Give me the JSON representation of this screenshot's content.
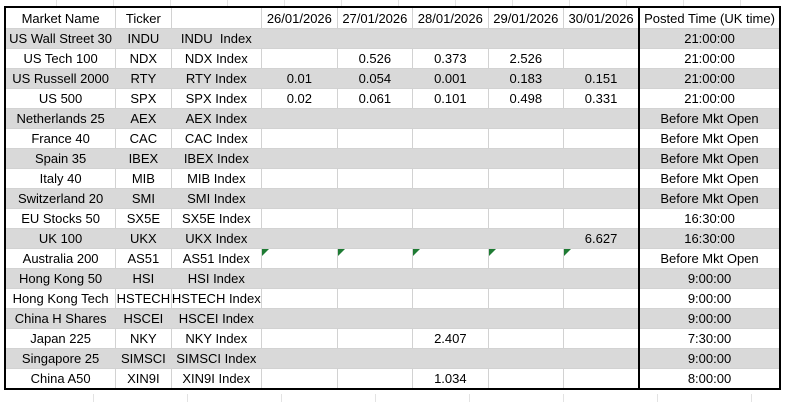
{
  "table": {
    "headers": {
      "market": "Market Name",
      "ticker": "Ticker",
      "index_name": "",
      "dates": [
        "26/01/2026",
        "27/01/2026",
        "28/01/2026",
        "29/01/2026",
        "30/01/2026"
      ],
      "posted": "Posted Time (UK time)"
    },
    "rows": [
      {
        "market": "US Wall Street 30",
        "ticker": "INDU",
        "index_name": "INDU  Index",
        "values": [
          "",
          "",
          "",
          "",
          ""
        ],
        "flags": [
          false,
          false,
          false,
          false,
          false
        ],
        "posted_time": "21:00:00",
        "shade": "gray"
      },
      {
        "market": "US Tech 100",
        "ticker": "NDX",
        "index_name": "NDX Index",
        "values": [
          "",
          "0.526",
          "0.373",
          "2.526",
          ""
        ],
        "flags": [
          false,
          false,
          false,
          false,
          false
        ],
        "posted_time": "21:00:00",
        "shade": "white"
      },
      {
        "market": "US Russell 2000",
        "ticker": "RTY",
        "index_name": "RTY Index",
        "values": [
          "0.01",
          "0.054",
          "0.001",
          "0.183",
          "0.151"
        ],
        "flags": [
          false,
          false,
          false,
          false,
          false
        ],
        "posted_time": "21:00:00",
        "shade": "gray"
      },
      {
        "market": "US 500",
        "ticker": "SPX",
        "index_name": "SPX Index",
        "values": [
          "0.02",
          "0.061",
          "0.101",
          "0.498",
          "0.331"
        ],
        "flags": [
          false,
          false,
          false,
          false,
          false
        ],
        "posted_time": "21:00:00",
        "shade": "white"
      },
      {
        "market": "Netherlands 25",
        "ticker": "AEX",
        "index_name": "AEX Index",
        "values": [
          "",
          "",
          "",
          "",
          ""
        ],
        "flags": [
          false,
          false,
          false,
          false,
          false
        ],
        "posted_time": "Before Mkt Open",
        "shade": "gray"
      },
      {
        "market": "France 40",
        "ticker": "CAC",
        "index_name": "CAC Index",
        "values": [
          "",
          "",
          "",
          "",
          ""
        ],
        "flags": [
          false,
          false,
          false,
          false,
          false
        ],
        "posted_time": "Before Mkt Open",
        "shade": "white"
      },
      {
        "market": "Spain 35",
        "ticker": "IBEX",
        "index_name": "IBEX Index",
        "values": [
          "",
          "",
          "",
          "",
          ""
        ],
        "flags": [
          false,
          false,
          false,
          false,
          false
        ],
        "posted_time": "Before Mkt Open",
        "shade": "gray"
      },
      {
        "market": "Italy 40",
        "ticker": "MIB",
        "index_name": "MIB Index",
        "values": [
          "",
          "",
          "",
          "",
          ""
        ],
        "flags": [
          false,
          false,
          false,
          false,
          false
        ],
        "posted_time": "Before Mkt Open",
        "shade": "white"
      },
      {
        "market": "Switzerland 20",
        "ticker": "SMI",
        "index_name": "SMI Index",
        "values": [
          "",
          "",
          "",
          "",
          ""
        ],
        "flags": [
          false,
          false,
          false,
          false,
          false
        ],
        "posted_time": "Before Mkt Open",
        "shade": "gray"
      },
      {
        "market": "EU Stocks 50",
        "ticker": "SX5E",
        "index_name": "SX5E Index",
        "values": [
          "",
          "",
          "",
          "",
          ""
        ],
        "flags": [
          false,
          false,
          false,
          false,
          false
        ],
        "posted_time": "16:30:00",
        "shade": "white"
      },
      {
        "market": "UK 100",
        "ticker": "UKX",
        "index_name": "UKX Index",
        "values": [
          "",
          "",
          "",
          "",
          "6.627"
        ],
        "flags": [
          false,
          false,
          false,
          false,
          false
        ],
        "posted_time": "16:30:00",
        "shade": "gray"
      },
      {
        "market": "Australia 200",
        "ticker": "AS51",
        "index_name": "AS51 Index",
        "values": [
          "",
          "",
          "",
          "",
          ""
        ],
        "flags": [
          true,
          true,
          true,
          true,
          true
        ],
        "posted_time": "Before Mkt Open",
        "shade": "white"
      },
      {
        "market": "Hong Kong 50",
        "ticker": "HSI",
        "index_name": "HSI Index",
        "values": [
          "",
          "",
          "",
          "",
          ""
        ],
        "flags": [
          false,
          false,
          false,
          false,
          false
        ],
        "posted_time": "9:00:00",
        "shade": "gray"
      },
      {
        "market": "Hong Kong Tech",
        "ticker": "HSTECH",
        "index_name": "HSTECH Index",
        "values": [
          "",
          "",
          "",
          "",
          ""
        ],
        "flags": [
          false,
          false,
          false,
          false,
          false
        ],
        "posted_time": "9:00:00",
        "shade": "white"
      },
      {
        "market": "China H Shares",
        "ticker": "HSCEI",
        "index_name": "HSCEI Index",
        "values": [
          "",
          "",
          "",
          "",
          ""
        ],
        "flags": [
          false,
          false,
          false,
          false,
          false
        ],
        "posted_time": "9:00:00",
        "shade": "gray"
      },
      {
        "market": "Japan 225",
        "ticker": "NKY",
        "index_name": "NKY Index",
        "values": [
          "",
          "",
          "2.407",
          "",
          ""
        ],
        "flags": [
          false,
          false,
          false,
          false,
          false
        ],
        "posted_time": "7:30:00",
        "shade": "white"
      },
      {
        "market": "Singapore 25",
        "ticker": "SIMSCI",
        "index_name": "SIMSCI Index",
        "values": [
          "",
          "",
          "",
          "",
          ""
        ],
        "flags": [
          false,
          false,
          false,
          false,
          false
        ],
        "posted_time": "9:00:00",
        "shade": "gray"
      },
      {
        "market": "China A50",
        "ticker": "XIN9I",
        "index_name": "XIN9I Index",
        "values": [
          "",
          "",
          "1.034",
          "",
          ""
        ],
        "flags": [
          false,
          false,
          false,
          false,
          false
        ],
        "posted_time": "8:00:00",
        "shade": "white"
      }
    ]
  },
  "colors": {
    "row_stripe": "#d9d9d9",
    "flag_green": "#1e7b33",
    "table_border": "#000000",
    "gridline": "#d2d2d2"
  }
}
